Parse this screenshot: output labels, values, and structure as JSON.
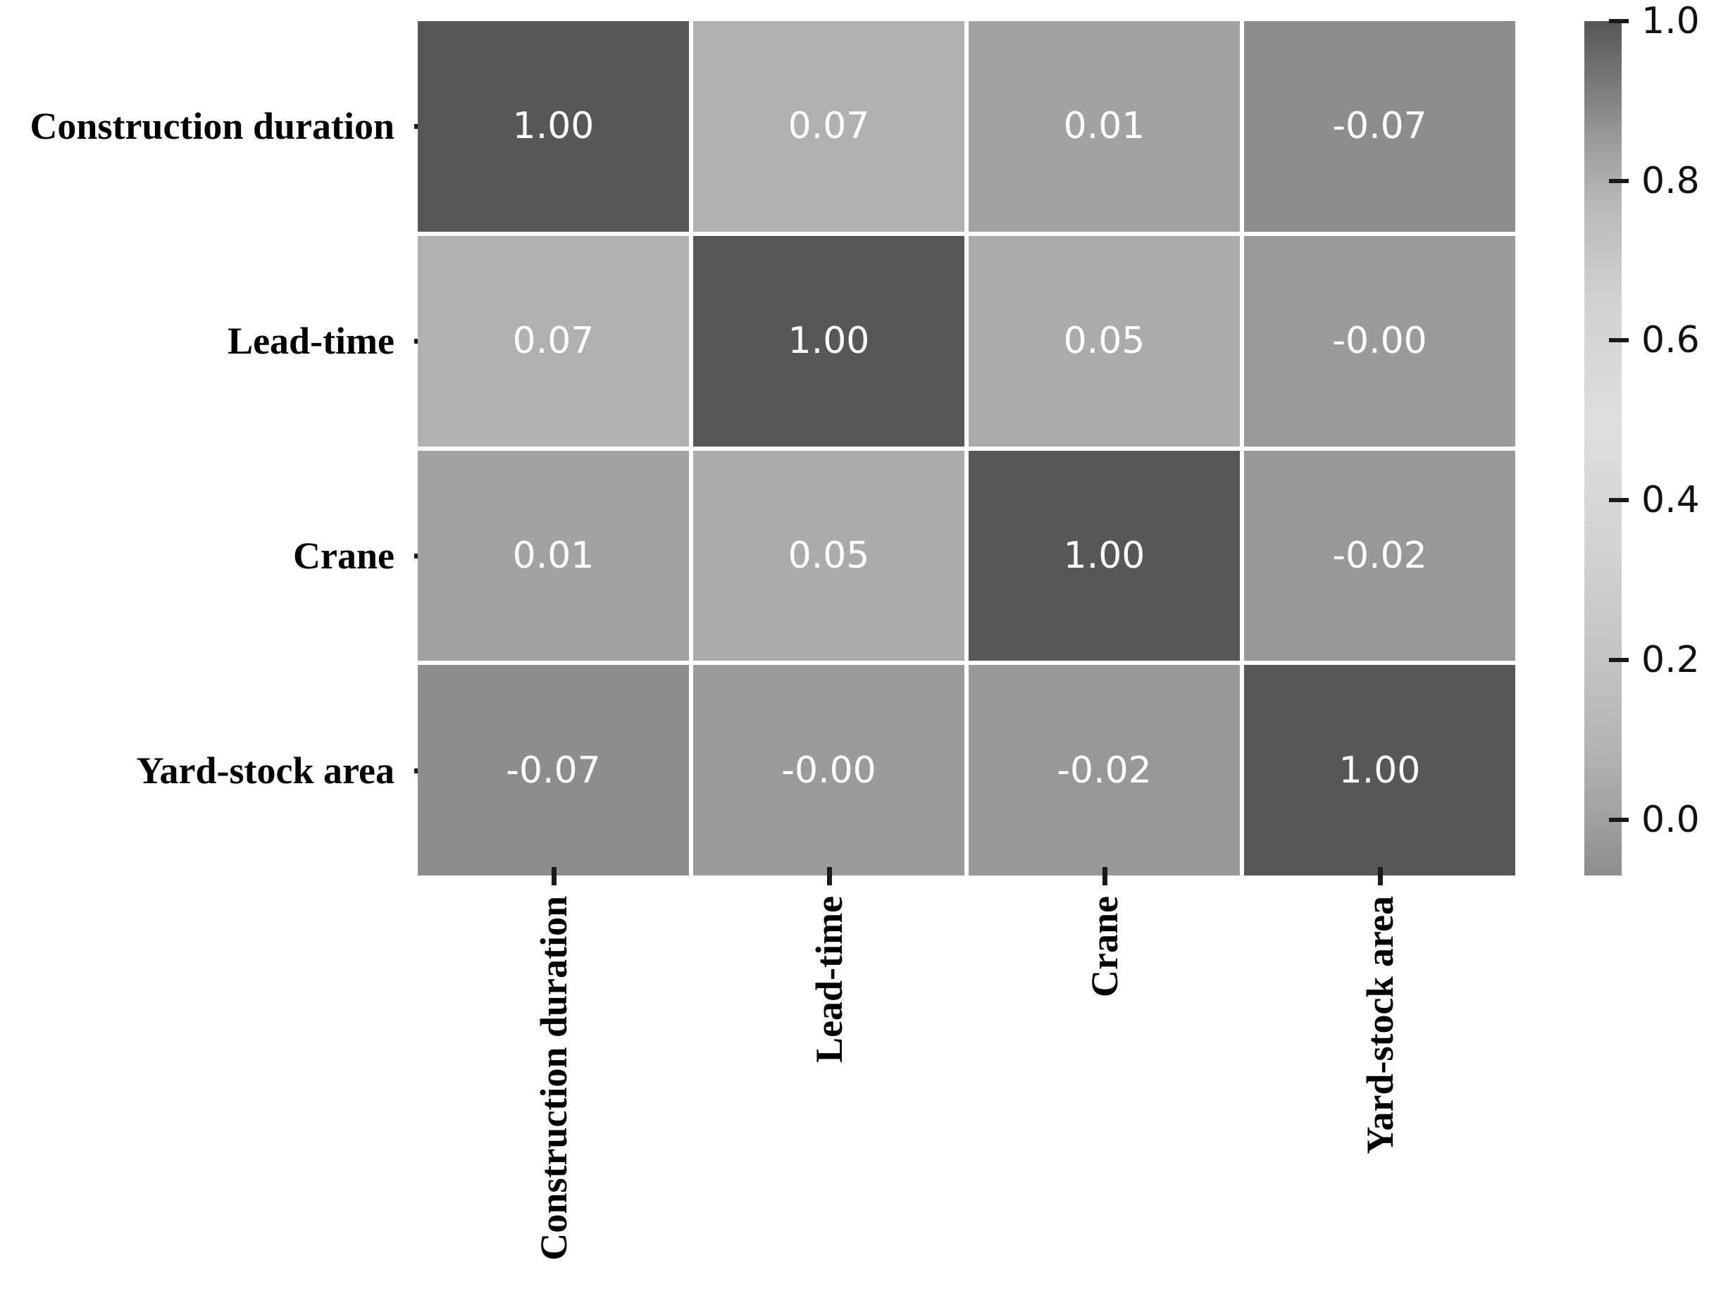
{
  "figure": {
    "background_color": "#ffffff",
    "annotation_text_color": "#ffffff",
    "gridline_color": "#ffffff",
    "axis_label_color": "#000000",
    "tick_color": "#1a1a1a"
  },
  "chart_data": {
    "type": "heatmap",
    "title": "",
    "xlabel": "",
    "ylabel": "",
    "categories": [
      "Construction duration",
      "Lead-time",
      "Crane",
      "Yard-stock area"
    ],
    "matrix": [
      [
        1.0,
        0.07,
        0.01,
        -0.07
      ],
      [
        0.07,
        1.0,
        0.05,
        -0.0
      ],
      [
        0.01,
        0.05,
        1.0,
        -0.02
      ],
      [
        -0.07,
        -0.0,
        -0.02,
        1.0
      ]
    ],
    "cell_labels": [
      [
        "1.00",
        "0.07",
        "0.01",
        "-0.07"
      ],
      [
        "0.07",
        "1.00",
        "0.05",
        "-0.00"
      ],
      [
        "0.01",
        "0.05",
        "1.00",
        "-0.02"
      ],
      [
        "-0.07",
        "-0.00",
        "-0.02",
        "1.00"
      ]
    ],
    "value_colors": {
      "1.00": "#575757",
      "0.07": "#b0b0b0",
      "0.05": "#ababab",
      "0.01": "#a2a2a2",
      "-0.00": "#9b9b9b",
      "-0.02": "#989898",
      "-0.07": "#8d8d8d"
    },
    "x_tick_label_rotation_deg": 90,
    "grid": false,
    "legend_position": "none",
    "colorbar": {
      "position": "right",
      "vmin": -0.07,
      "vmax": 1.0,
      "ticks": [
        "1.0",
        "0.8",
        "0.6",
        "0.4",
        "0.2",
        "0.0"
      ],
      "tick_values": [
        1.0,
        0.8,
        0.6,
        0.4,
        0.2,
        0.0
      ],
      "gradient_stops": [
        {
          "pos": 0.0,
          "color": "#565656"
        },
        {
          "pos": 0.04,
          "color": "#6a6a6a"
        },
        {
          "pos": 0.09,
          "color": "#828282"
        },
        {
          "pos": 0.15,
          "color": "#a0a0a0"
        },
        {
          "pos": 0.22,
          "color": "#bababa"
        },
        {
          "pos": 0.33,
          "color": "#d2d2d2"
        },
        {
          "pos": 0.47,
          "color": "#dedede"
        },
        {
          "pos": 0.6,
          "color": "#d4d4d4"
        },
        {
          "pos": 0.7,
          "color": "#c9c9c9"
        },
        {
          "pos": 0.8,
          "color": "#bcbcbc"
        },
        {
          "pos": 0.87,
          "color": "#b0b0b0"
        },
        {
          "pos": 0.94,
          "color": "#9e9e9e"
        },
        {
          "pos": 1.0,
          "color": "#8d8d8d"
        }
      ]
    }
  }
}
